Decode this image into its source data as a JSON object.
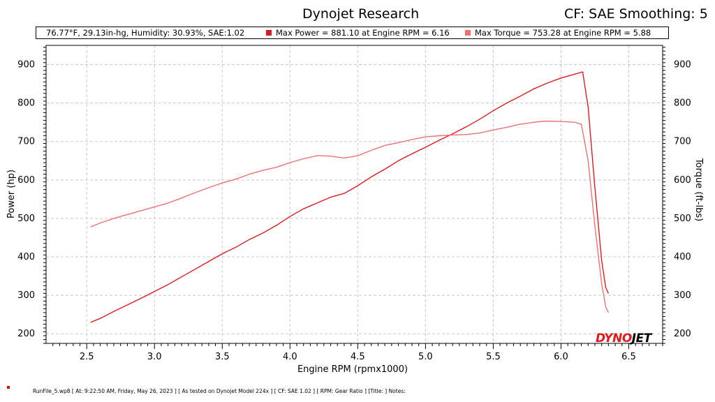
{
  "header": {
    "app_title": "Dynojet Research",
    "cf_title": "CF: SAE Smoothing: 5"
  },
  "infobar": {
    "conditions": "76.77°F, 29.13in-hg, Humidity: 30.93%, SAE:1.02",
    "max_power": "Max Power = 881.10 at Engine RPM = 6.16",
    "max_torque": "Max Torque = 753.28 at Engine RPM = 5.88"
  },
  "colors": {
    "power": "#e0191e",
    "torque": "#f07070",
    "grid": "#c8c8c8"
  },
  "footer": {
    "text": "RunFile_5.wp8  [ At:  9:22:50 AM, Friday, May 26, 2023 ]  [ As tested on Dynojet Model 224x ]  [ CF:  SAE 1.02 ]  [ RPM:  Gear Ratio ]  [Title: ]   Notes:"
  },
  "logo": "DYNOJET",
  "chart_data": {
    "type": "line",
    "xlabel": "Engine RPM (rpmx1000)",
    "ylabel": "Power (hp)",
    "y2label": "Torque (ft-lbs)",
    "xlim": [
      2.2,
      6.75
    ],
    "ylim": [
      175,
      950
    ],
    "xticks": [
      "2.5",
      "3.0",
      "3.5",
      "4.0",
      "4.5",
      "5.0",
      "5.5",
      "6.0",
      "6.5"
    ],
    "yticks": [
      "200",
      "300",
      "400",
      "500",
      "600",
      "700",
      "800",
      "900"
    ],
    "grid": true,
    "series": [
      {
        "name": "Power",
        "axis": "left",
        "x": [
          2.53,
          2.6,
          2.7,
          2.8,
          2.9,
          3.0,
          3.1,
          3.2,
          3.3,
          3.4,
          3.5,
          3.6,
          3.7,
          3.8,
          3.9,
          4.0,
          4.1,
          4.2,
          4.3,
          4.4,
          4.5,
          4.6,
          4.7,
          4.8,
          4.9,
          5.0,
          5.1,
          5.2,
          5.3,
          5.4,
          5.5,
          5.6,
          5.7,
          5.8,
          5.9,
          6.0,
          6.1,
          6.16,
          6.2,
          6.25,
          6.3,
          6.33,
          6.35
        ],
        "y": [
          230,
          240,
          258,
          275,
          292,
          310,
          328,
          348,
          368,
          388,
          408,
          425,
          445,
          462,
          482,
          505,
          525,
          540,
          555,
          565,
          585,
          608,
          628,
          650,
          668,
          685,
          703,
          720,
          738,
          758,
          780,
          800,
          818,
          837,
          852,
          865,
          875,
          881,
          790,
          580,
          390,
          320,
          305
        ]
      },
      {
        "name": "Torque",
        "axis": "right",
        "x": [
          2.53,
          2.6,
          2.7,
          2.8,
          2.9,
          3.0,
          3.1,
          3.2,
          3.3,
          3.4,
          3.5,
          3.6,
          3.7,
          3.8,
          3.9,
          4.0,
          4.1,
          4.2,
          4.3,
          4.4,
          4.5,
          4.6,
          4.7,
          4.8,
          4.9,
          5.0,
          5.1,
          5.2,
          5.3,
          5.4,
          5.5,
          5.6,
          5.7,
          5.8,
          5.88,
          6.0,
          6.1,
          6.15,
          6.2,
          6.25,
          6.3,
          6.33,
          6.35
        ],
        "y": [
          478,
          488,
          500,
          510,
          520,
          530,
          540,
          553,
          567,
          580,
          592,
          602,
          615,
          625,
          633,
          645,
          655,
          663,
          662,
          657,
          663,
          677,
          690,
          697,
          705,
          712,
          715,
          717,
          718,
          722,
          730,
          737,
          745,
          750,
          753,
          752,
          750,
          745,
          650,
          480,
          330,
          270,
          255
        ]
      }
    ]
  }
}
